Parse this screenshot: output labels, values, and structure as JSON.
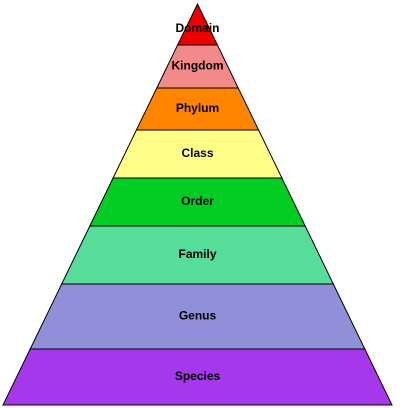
{
  "pyramid": {
    "tiers": [
      {
        "label": "Domain",
        "color": "#ee0000"
      },
      {
        "label": "Kingdom",
        "color": "#f38a8a"
      },
      {
        "label": "Phylum",
        "color": "#ff8400"
      },
      {
        "label": "Class",
        "color": "#ffff88"
      },
      {
        "label": "Order",
        "color": "#00cc22"
      },
      {
        "label": "Family",
        "color": "#55dd99"
      },
      {
        "label": "Genus",
        "color": "#9090d8"
      },
      {
        "label": "Species",
        "color": "#a438ea"
      }
    ]
  }
}
